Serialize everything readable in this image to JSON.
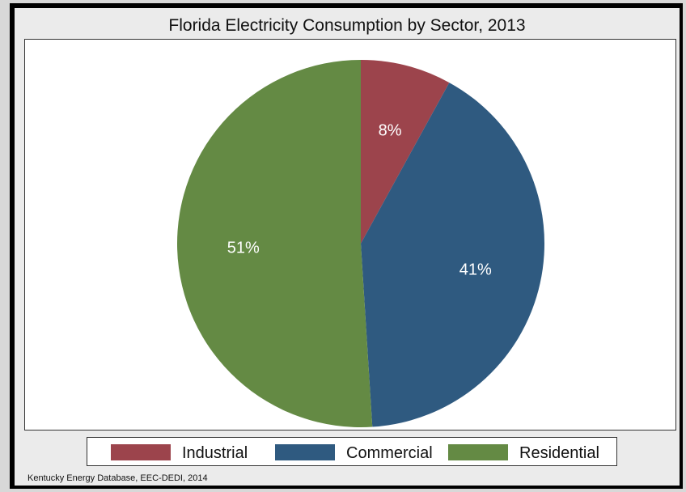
{
  "chart_data": {
    "type": "pie",
    "title": "Florida Electricity Consumption by Sector, 2013",
    "categories": [
      "Industrial",
      "Commercial",
      "Residential"
    ],
    "values": [
      8,
      41,
      51
    ],
    "data_labels": [
      "8%",
      "41%",
      "51%"
    ],
    "colors": [
      "#9c444c",
      "#2f5a80",
      "#648a44"
    ],
    "start": "12 o'clock",
    "direction": "clockwise",
    "legend_position": "bottom"
  },
  "source": "Kentucky Energy Database, EEC-DEDI, 2014"
}
